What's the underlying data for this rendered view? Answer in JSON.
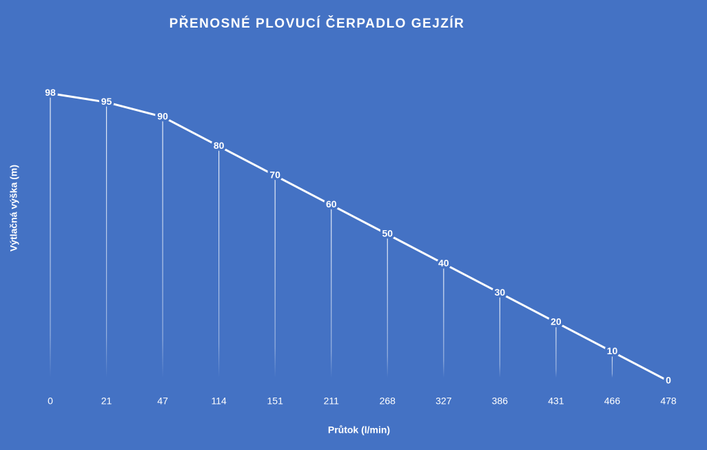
{
  "chart_data": {
    "type": "line",
    "title": "PŘENOSNÉ PLOVUCÍ ČERPADLO GEJZÍR",
    "x_label": "Průtok (l/min)",
    "y_label": "Výtlačná výška (m)",
    "categories": [
      "0",
      "21",
      "47",
      "114",
      "151",
      "211",
      "268",
      "327",
      "386",
      "431",
      "466",
      "478"
    ],
    "values": [
      98,
      95,
      90,
      80,
      70,
      60,
      50,
      40,
      30,
      20,
      10,
      0
    ],
    "color": "#ffffff",
    "ylim": [
      0,
      100
    ],
    "drop_lines": true,
    "data_labels": true
  }
}
